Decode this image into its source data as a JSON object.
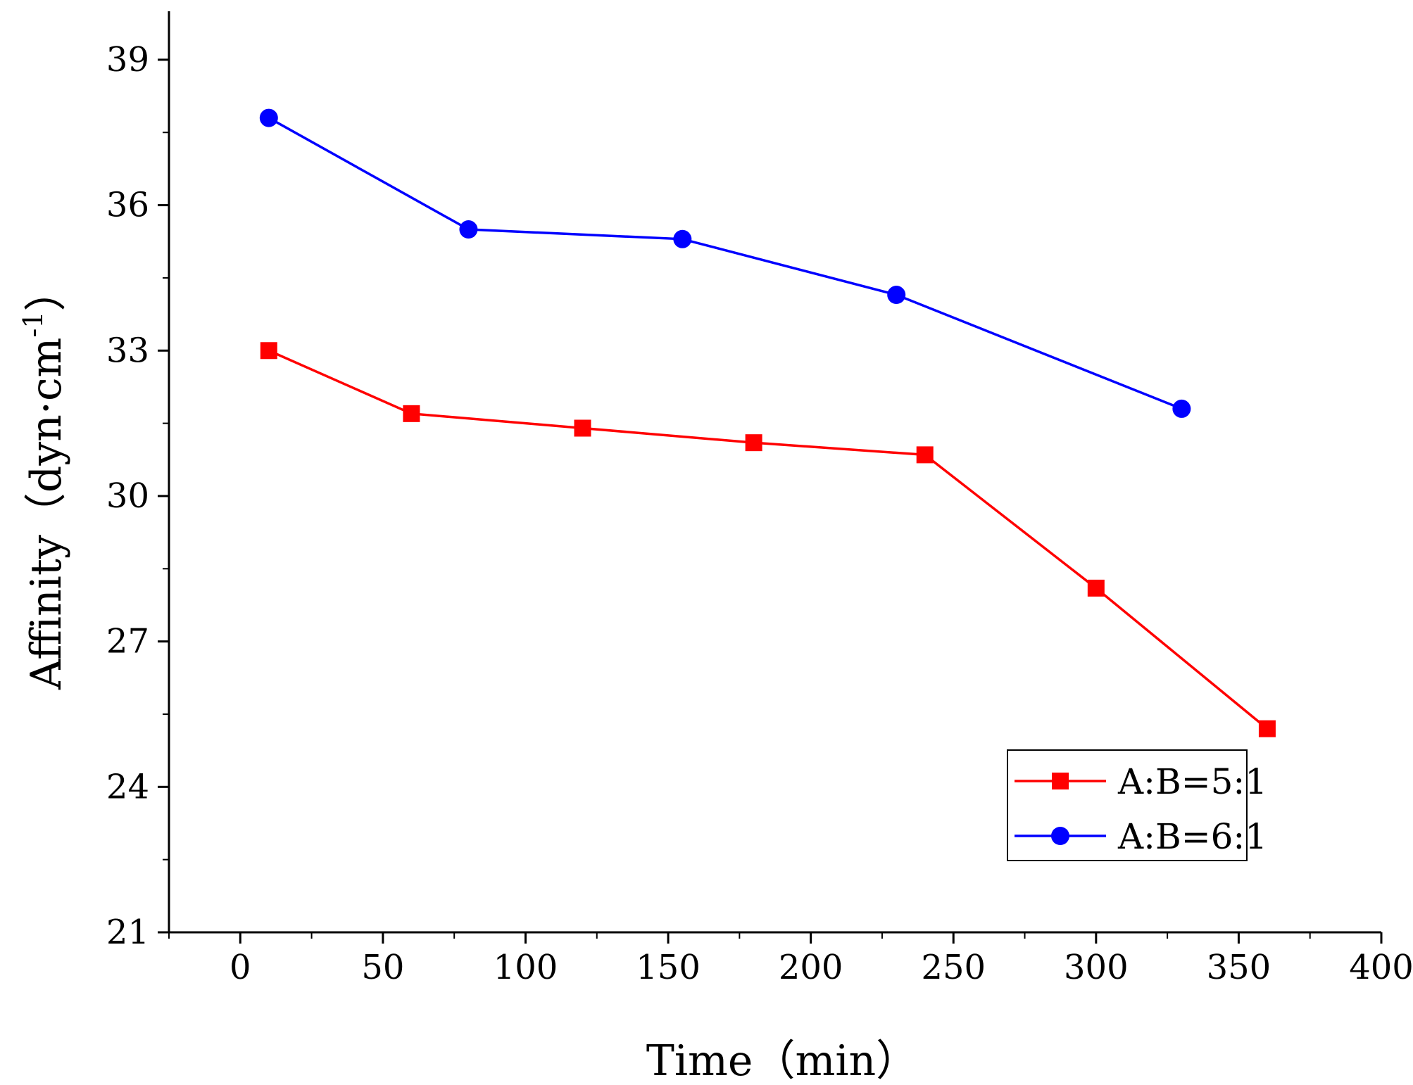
{
  "chart_data": {
    "type": "line",
    "title": "",
    "xlabel": "Time（min）",
    "ylabel": "Affinity（dyn·cm",
    "ylabel_superscript": "-1",
    "ylabel_close": "）",
    "xlim": [
      -25,
      400
    ],
    "ylim": [
      21,
      40
    ],
    "x_ticks": [
      0,
      50,
      100,
      150,
      200,
      250,
      300,
      350,
      400
    ],
    "x_tick_labels": [
      "0",
      "50",
      "100",
      "150",
      "200",
      "250",
      "300",
      "350",
      "400"
    ],
    "y_ticks": [
      21,
      24,
      27,
      30,
      33,
      36,
      39
    ],
    "y_tick_labels": [
      "21",
      "24",
      "27",
      "30",
      "33",
      "36",
      "39"
    ],
    "grid": false,
    "legend_position": "bottom-right",
    "series": [
      {
        "name": "A:B=5:1",
        "color": "#ff0000",
        "marker": "square",
        "x": [
          10,
          60,
          120,
          180,
          240,
          300,
          360
        ],
        "y": [
          33.0,
          31.7,
          31.4,
          31.1,
          30.85,
          28.1,
          25.2
        ]
      },
      {
        "name": "A:B=6:1",
        "color": "#0000ff",
        "marker": "circle",
        "x": [
          10,
          80,
          155,
          230,
          330
        ],
        "y": [
          37.8,
          35.5,
          35.3,
          34.15,
          31.8
        ]
      }
    ]
  }
}
